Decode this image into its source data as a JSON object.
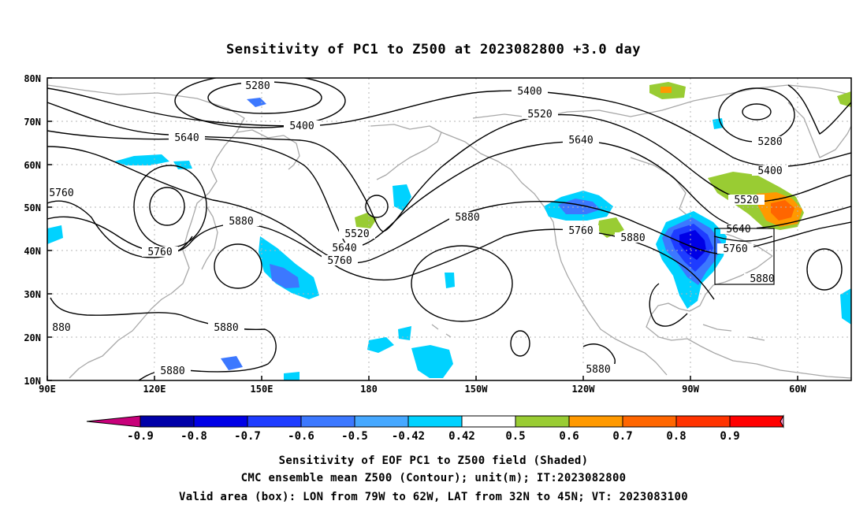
{
  "title": "Sensitivity of PC1 to Z500 at 2023082800 +3.0 day",
  "map": {
    "lon_ticks": [
      "90E",
      "120E",
      "150E",
      "180",
      "150W",
      "120W",
      "90W",
      "60W"
    ],
    "lat_ticks": [
      "80N",
      "70N",
      "60N",
      "50N",
      "40N",
      "30N",
      "20N",
      "10N"
    ],
    "contour_labels": [
      "5280",
      "5400",
      "5400",
      "5520",
      "5640",
      "5640",
      "5760",
      "5880",
      "5880",
      "5520",
      "5640",
      "5760",
      "5880",
      "5760",
      "5880",
      "5400",
      "5280",
      "5400",
      "5520",
      "5640",
      "5760",
      "5880",
      "5760",
      "5880",
      "880",
      "5880",
      "5880"
    ]
  },
  "colorbar": {
    "labels": [
      "-0.9",
      "-0.8",
      "-0.7",
      "-0.6",
      "-0.5",
      "-0.42",
      "0.42",
      "0.5",
      "0.6",
      "0.7",
      "0.8",
      "0.9"
    ],
    "colors": [
      "#c8007a",
      "#0000a8",
      "#0000e6",
      "#1e3cff",
      "#3c78ff",
      "#46a8ff",
      "#00d2ff",
      "#ffffff",
      "#99cc33",
      "#ff9900",
      "#ff6600",
      "#ff3300",
      "#ff0000",
      "#ff99cc"
    ]
  },
  "captions": [
    "Sensitivity of EOF PC1 to Z500 field (Shaded)",
    "CMC ensemble mean Z500 (Contour); unit(m); IT:2023082800",
    "Valid area (box): LON from 79W to 62W, LAT from 32N to 45N; VT: 2023083100"
  ]
}
